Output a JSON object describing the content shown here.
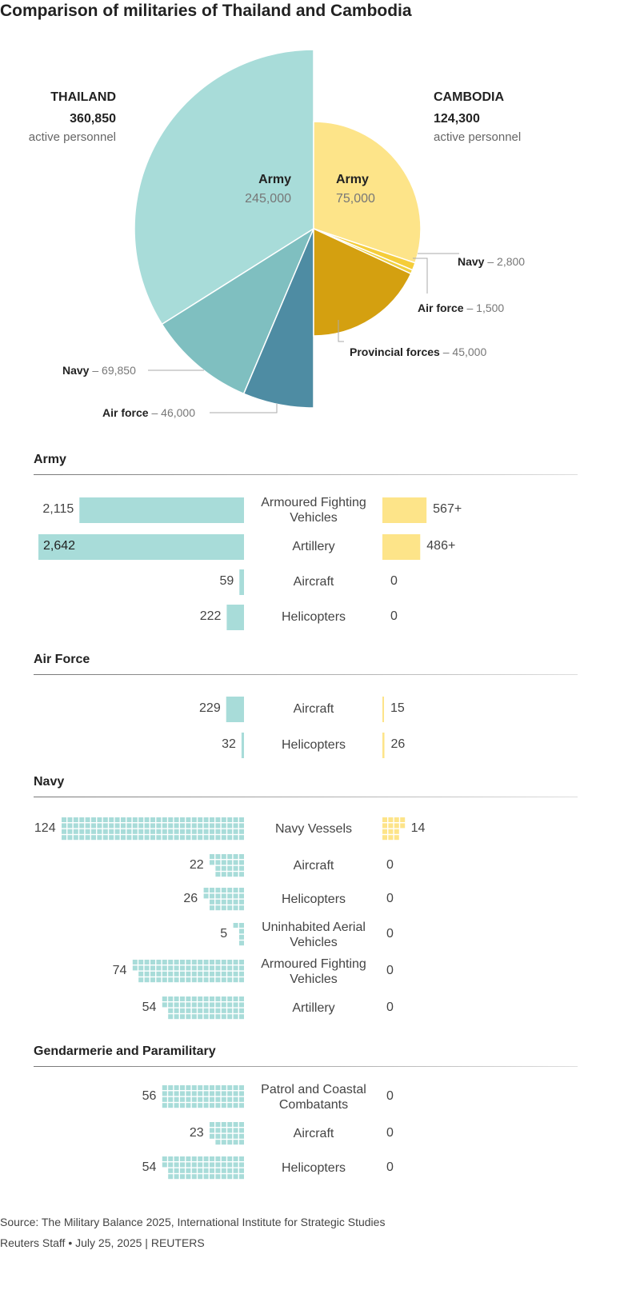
{
  "title": "Comparison of militaries of Thailand and Cambodia",
  "chart_data": [
    {
      "type": "pie",
      "subtype": "half-pie",
      "country": "THAILAND",
      "total": "360,850",
      "total_label": "active personnel",
      "color_scheme": [
        "#a8dcd9",
        "#7fbfc0",
        "#4e8ca3"
      ],
      "slices": [
        {
          "name": "Army",
          "value": 245000,
          "label": "245,000"
        },
        {
          "name": "Navy",
          "value": 69850,
          "label": "69,850"
        },
        {
          "name": "Air force",
          "value": 46000,
          "label": "46,000"
        }
      ]
    },
    {
      "type": "pie",
      "subtype": "half-pie",
      "country": "CAMBODIA",
      "total": "124,300",
      "total_label": "active personnel",
      "color_scheme": [
        "#fde489",
        "#f5cd3a",
        "#f0d040",
        "#d4a010"
      ],
      "slices": [
        {
          "name": "Army",
          "value": 75000,
          "label": "75,000"
        },
        {
          "name": "Navy",
          "value": 2800,
          "label": "2,800"
        },
        {
          "name": "Air force",
          "value": 1500,
          "label": "1,500"
        },
        {
          "name": "Provincial forces",
          "value": 45000,
          "label": "45,000"
        }
      ]
    },
    {
      "type": "bar",
      "orientation": "diverging-horizontal",
      "series_colors": {
        "Thailand": "#a8dcd9",
        "Cambodia": "#fde489"
      },
      "sections": [
        {
          "name": "Army",
          "style": "bar",
          "rows": [
            {
              "category": "Armoured Fighting Vehicles",
              "thailand": 2115,
              "thailand_label": "2,115",
              "cambodia": 567,
              "cambodia_label": "567+"
            },
            {
              "category": "Artillery",
              "thailand": 2642,
              "thailand_label": "2,642",
              "cambodia": 486,
              "cambodia_label": "486+"
            },
            {
              "category": "Aircraft",
              "thailand": 59,
              "thailand_label": "59",
              "cambodia": 0,
              "cambodia_label": "0"
            },
            {
              "category": "Helicopters",
              "thailand": 222,
              "thailand_label": "222",
              "cambodia": 0,
              "cambodia_label": "0"
            }
          ]
        },
        {
          "name": "Air Force",
          "style": "bar",
          "rows": [
            {
              "category": "Aircraft",
              "thailand": 229,
              "thailand_label": "229",
              "cambodia": 15,
              "cambodia_label": "15"
            },
            {
              "category": "Helicopters",
              "thailand": 32,
              "thailand_label": "32",
              "cambodia": 26,
              "cambodia_label": "26"
            }
          ]
        },
        {
          "name": "Navy",
          "style": "waffle",
          "rows": [
            {
              "category": "Navy Vessels",
              "thailand": 124,
              "thailand_label": "124",
              "cambodia": 14,
              "cambodia_label": "14"
            },
            {
              "category": "Aircraft",
              "thailand": 22,
              "thailand_label": "22",
              "cambodia": 0,
              "cambodia_label": "0"
            },
            {
              "category": "Helicopters",
              "thailand": 26,
              "thailand_label": "26",
              "cambodia": 0,
              "cambodia_label": "0"
            },
            {
              "category": "Uninhabited Aerial Vehicles",
              "thailand": 5,
              "thailand_label": "5",
              "cambodia": 0,
              "cambodia_label": "0"
            },
            {
              "category": "Armoured Fighting Vehicles",
              "thailand": 74,
              "thailand_label": "74",
              "cambodia": 0,
              "cambodia_label": "0"
            },
            {
              "category": "Artillery",
              "thailand": 54,
              "thailand_label": "54",
              "cambodia": 0,
              "cambodia_label": "0"
            }
          ]
        },
        {
          "name": "Gendarmerie and Paramilitary",
          "style": "waffle",
          "rows": [
            {
              "category": "Patrol and Coastal Combatants",
              "thailand": 56,
              "thailand_label": "56",
              "cambodia": 0,
              "cambodia_label": "0"
            },
            {
              "category": "Aircraft",
              "thailand": 23,
              "thailand_label": "23",
              "cambodia": 0,
              "cambodia_label": "0"
            },
            {
              "category": "Helicopters",
              "thailand": 54,
              "thailand_label": "54",
              "cambodia": 0,
              "cambodia_label": "0"
            }
          ]
        }
      ]
    }
  ],
  "footer": {
    "source": "Source: The Military Balance 2025, International Institute for Strategic Studies",
    "credit": "Reuters Staff • July 25, 2025 | REUTERS"
  }
}
